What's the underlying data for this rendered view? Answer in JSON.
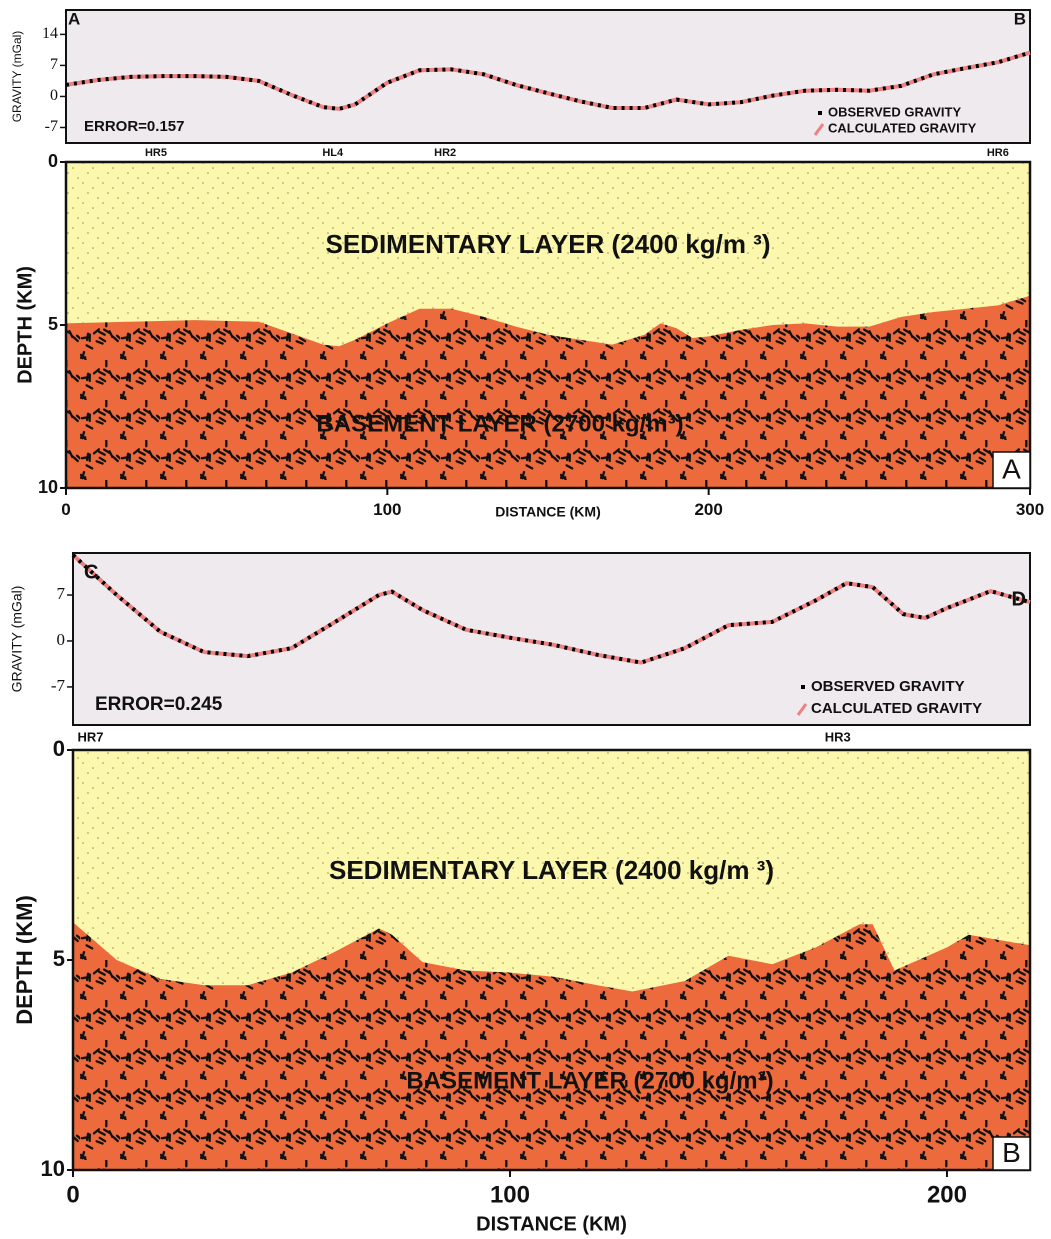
{
  "chart_data": [
    {
      "type": "line",
      "ylabel": "GRAVITY (mGal)",
      "start_label": "A",
      "end_label": "B",
      "error_label": "ERROR=0.157",
      "xlim": [
        0,
        300
      ],
      "ylim": [
        -10.5,
        19.5
      ],
      "yticks": [
        14,
        7,
        0,
        -7
      ],
      "background_color": "#eeeaee",
      "x": [
        0,
        10,
        20,
        30,
        40,
        50,
        60,
        70,
        80,
        85,
        90,
        100,
        110,
        120,
        130,
        140,
        150,
        160,
        170,
        180,
        190,
        200,
        210,
        220,
        230,
        240,
        250,
        260,
        270,
        280,
        290,
        300
      ],
      "series": [
        {
          "name": "CALCULATED GRAVITY",
          "color": "#f07f7f",
          "line_style": "solid",
          "values": [
            2.6,
            3.7,
            4.4,
            4.6,
            4.6,
            4.4,
            3.5,
            0.4,
            -2.4,
            -2.8,
            -1.8,
            3.1,
            5.9,
            6.1,
            5.0,
            2.6,
            0.7,
            -1.1,
            -2.6,
            -2.6,
            -0.7,
            -1.8,
            -1.3,
            0.2,
            1.3,
            1.5,
            1.3,
            2.4,
            5.0,
            6.4,
            7.7,
            9.9
          ]
        },
        {
          "name": "OBSERVED GRAVITY",
          "color": "#000000",
          "line_style": "dotted",
          "values": [
            2.6,
            3.7,
            4.4,
            4.6,
            4.6,
            4.4,
            3.5,
            0.4,
            -2.4,
            -2.8,
            -1.8,
            3.1,
            5.9,
            6.1,
            5.0,
            2.6,
            0.7,
            -1.1,
            -2.6,
            -2.6,
            -0.7,
            -1.8,
            -1.3,
            0.2,
            1.3,
            1.5,
            1.3,
            2.4,
            5.0,
            6.4,
            7.7,
            9.9
          ]
        }
      ]
    },
    {
      "type": "area",
      "xlabel": "DISTANCE (KM)",
      "ylabel": "DEPTH (KM)",
      "panel_label": "A",
      "background_label": "SEDIMENTARY LAYER (2400 kg/m ³)",
      "background_color": "#fbf8ad",
      "xlim": [
        0,
        300
      ],
      "xticks": [
        0,
        100,
        200,
        300
      ],
      "ylim": [
        0,
        10
      ],
      "yticks": [
        0,
        5,
        10
      ],
      "y_inverted": true,
      "stations": [
        {
          "label": "HR5",
          "x": 28
        },
        {
          "label": "HL4",
          "x": 83
        },
        {
          "label": "HR2",
          "x": 118
        },
        {
          "label": "HR6",
          "x": 290
        }
      ],
      "x": [
        0,
        20,
        40,
        60,
        70,
        80,
        85,
        90,
        100,
        110,
        120,
        130,
        140,
        150,
        160,
        170,
        180,
        185,
        190,
        195,
        200,
        210,
        220,
        230,
        240,
        250,
        260,
        270,
        280,
        290,
        300
      ],
      "series": [
        {
          "name": "BASEMENT LAYER (2700 kg/m³)",
          "color": "#ec6a3b",
          "values": [
            4.95,
            4.9,
            4.85,
            4.9,
            5.25,
            5.6,
            5.65,
            5.45,
            4.95,
            4.5,
            4.5,
            4.75,
            5.05,
            5.3,
            5.45,
            5.6,
            5.3,
            4.95,
            5.1,
            5.4,
            5.35,
            5.15,
            5.0,
            4.95,
            5.05,
            5.05,
            4.75,
            4.6,
            4.5,
            4.4,
            4.1
          ]
        }
      ]
    },
    {
      "type": "line",
      "ylabel": "GRAVITY (mGal)",
      "start_label": "C",
      "end_label": "D",
      "error_label": "ERROR=0.245",
      "xlim": [
        0,
        219
      ],
      "ylim": [
        -12.8,
        13.4
      ],
      "yticks": [
        7,
        0,
        -7
      ],
      "background_color": "#eeeaee",
      "x": [
        0,
        10,
        20,
        30,
        40,
        50,
        60,
        70,
        73,
        80,
        90,
        100,
        110,
        120,
        130,
        140,
        150,
        160,
        170,
        177,
        183,
        190,
        195,
        200,
        210,
        219
      ],
      "series": [
        {
          "name": "CALCULATED GRAVITY",
          "color": "#f07f7f",
          "line_style": "solid",
          "values": [
            13.1,
            7.0,
            1.4,
            -1.7,
            -2.3,
            -1.1,
            2.9,
            7.0,
            7.5,
            4.7,
            1.7,
            0.5,
            -0.6,
            -2.1,
            -3.3,
            -1.1,
            2.4,
            2.9,
            6.2,
            8.8,
            8.2,
            4.1,
            3.5,
            5.0,
            7.6,
            5.9
          ]
        },
        {
          "name": "OBSERVED GRAVITY",
          "color": "#000000",
          "line_style": "dotted",
          "values": [
            13.1,
            7.0,
            1.4,
            -1.7,
            -2.3,
            -1.1,
            2.9,
            7.0,
            7.5,
            4.7,
            1.7,
            0.5,
            -0.6,
            -2.1,
            -3.3,
            -1.1,
            2.4,
            2.9,
            6.2,
            8.8,
            8.2,
            4.1,
            3.5,
            5.0,
            7.6,
            5.9
          ]
        }
      ]
    },
    {
      "type": "area",
      "xlabel": "DISTANCE (KM)",
      "ylabel": "DEPTH (KM)",
      "panel_label": "B",
      "background_label": "SEDIMENTARY LAYER (2400 kg/m ³)",
      "background_color": "#fbf8ad",
      "xlim": [
        0,
        219
      ],
      "xticks": [
        0,
        100,
        200
      ],
      "ylim": [
        0,
        10
      ],
      "yticks": [
        0,
        5,
        10
      ],
      "y_inverted": true,
      "stations": [
        {
          "label": "HR7",
          "x": 4
        },
        {
          "label": "HR3",
          "x": 175
        }
      ],
      "x": [
        0,
        10,
        20,
        30,
        40,
        50,
        60,
        70,
        73,
        80,
        90,
        100,
        110,
        120,
        128,
        140,
        150,
        160,
        170,
        180,
        183,
        188,
        200,
        205,
        219
      ],
      "series": [
        {
          "name": "BASEMENT LAYER (2700 kg/m³)",
          "color": "#ec6a3b",
          "values": [
            4.1,
            5.0,
            5.45,
            5.6,
            5.6,
            5.3,
            4.8,
            4.25,
            4.4,
            5.05,
            5.25,
            5.3,
            5.4,
            5.6,
            5.75,
            5.5,
            4.9,
            5.1,
            4.7,
            4.15,
            4.15,
            5.25,
            4.7,
            4.4,
            4.65
          ]
        }
      ]
    }
  ]
}
